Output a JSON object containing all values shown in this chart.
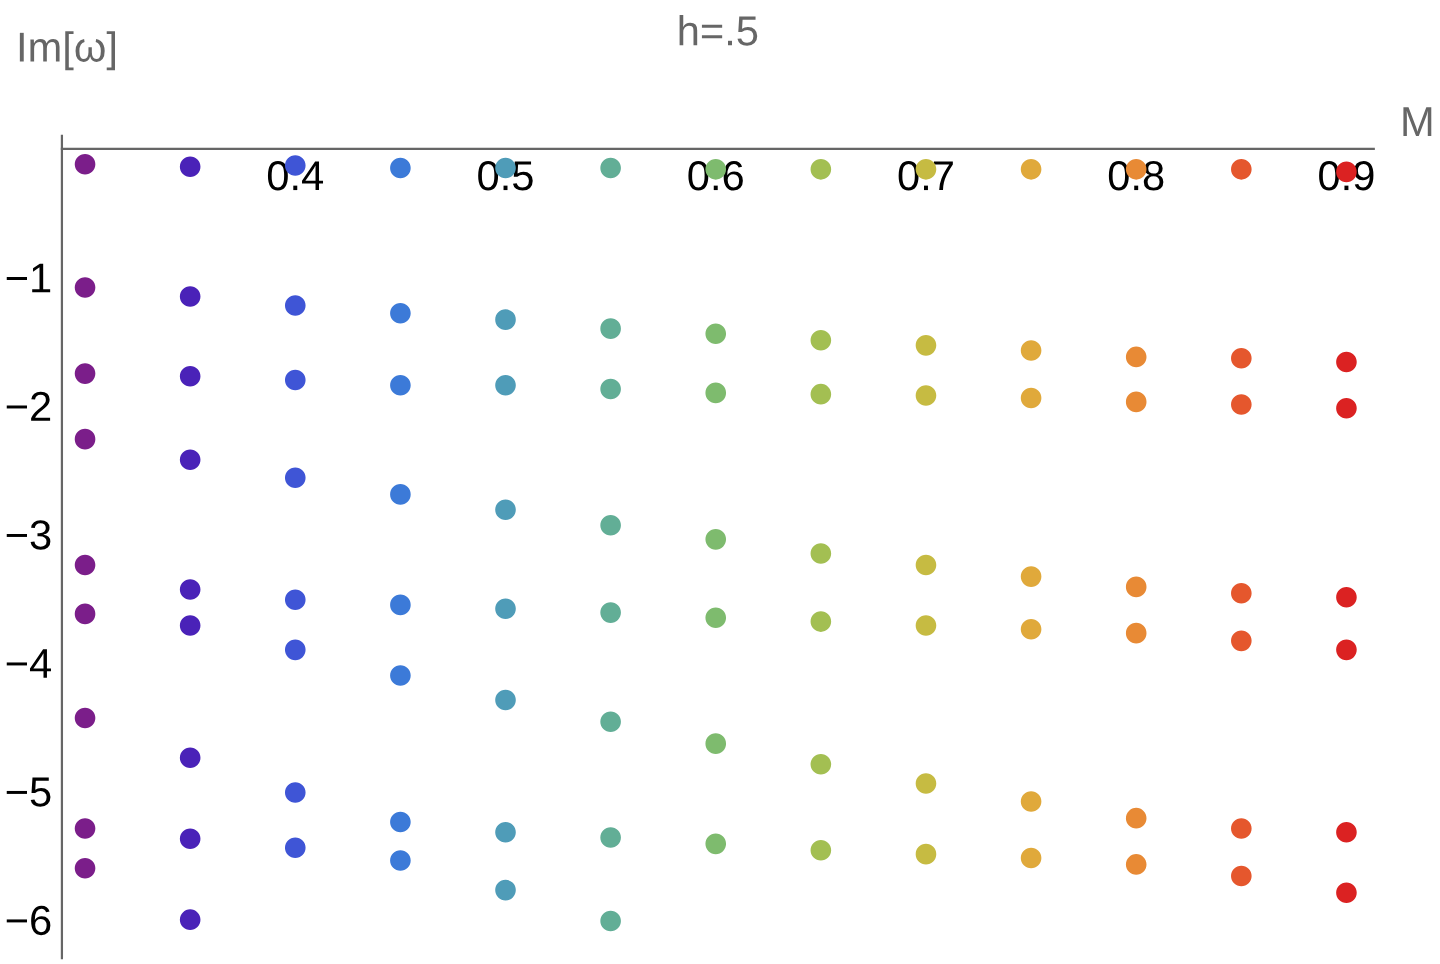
{
  "chart_data": {
    "type": "scatter",
    "title": "h=.5",
    "xlabel": "M",
    "ylabel": "Im[ω]",
    "marker": "circle",
    "grid": false,
    "legend": false,
    "xlim": [
      0.289,
      0.913
    ],
    "ylim": [
      -6.3,
      0.1
    ],
    "xticks": [
      0.4,
      0.5,
      0.6,
      0.7,
      0.8,
      0.9
    ],
    "yticks": [
      {
        "value": -1,
        "label": "−1"
      },
      {
        "value": -2,
        "label": "−2"
      },
      {
        "value": -3,
        "label": "−3"
      },
      {
        "value": -4,
        "label": "−4"
      },
      {
        "value": -5,
        "label": "−5"
      },
      {
        "value": -6,
        "label": "−6"
      }
    ],
    "series": [
      {
        "color": "#7b1e8a",
        "x": [
          0.3,
          0.3,
          0.3,
          0.3,
          0.3,
          0.3,
          0.3,
          0.3,
          0.3
        ],
        "values": [
          -0.12,
          -1.08,
          -1.75,
          -2.26,
          -3.24,
          -3.62,
          -4.43,
          -5.29,
          -5.6
        ]
      },
      {
        "color": "#4a22b8",
        "x": [
          0.35,
          0.35,
          0.35,
          0.35,
          0.35,
          0.35,
          0.35,
          0.35,
          0.35
        ],
        "values": [
          -0.14,
          -1.15,
          -1.77,
          -2.42,
          -3.43,
          -3.71,
          -4.74,
          -5.37,
          -6.0
        ]
      },
      {
        "color": "#3f55d6",
        "x": [
          0.4,
          0.4,
          0.4,
          0.4,
          0.4,
          0.4,
          0.4,
          0.4
        ],
        "values": [
          -0.13,
          -1.22,
          -1.8,
          -2.56,
          -3.51,
          -3.9,
          -5.01,
          -5.44
        ]
      },
      {
        "color": "#3c7ad8",
        "x": [
          0.45,
          0.45,
          0.45,
          0.45,
          0.45,
          0.45,
          0.45,
          0.45
        ],
        "values": [
          -0.15,
          -1.28,
          -1.84,
          -2.69,
          -3.55,
          -4.1,
          -5.24,
          -5.54
        ]
      },
      {
        "color": "#4f9cb8",
        "x": [
          0.5,
          0.5,
          0.5,
          0.5,
          0.5,
          0.5,
          0.5,
          0.5
        ],
        "values": [
          -0.15,
          -1.33,
          -1.84,
          -2.81,
          -3.58,
          -4.29,
          -5.32,
          -5.77
        ]
      },
      {
        "color": "#62ae96",
        "x": [
          0.55,
          0.55,
          0.55,
          0.55,
          0.55,
          0.55,
          0.55,
          0.55
        ],
        "values": [
          -0.15,
          -1.4,
          -1.87,
          -2.93,
          -3.61,
          -4.46,
          -5.36,
          -6.01
        ]
      },
      {
        "color": "#7ebb6e",
        "x": [
          0.6,
          0.6,
          0.6,
          0.6,
          0.6,
          0.6,
          0.6
        ],
        "values": [
          -0.16,
          -1.44,
          -1.9,
          -3.04,
          -3.65,
          -4.63,
          -5.41
        ]
      },
      {
        "color": "#a3bf52",
        "x": [
          0.65,
          0.65,
          0.65,
          0.65,
          0.65,
          0.65,
          0.65
        ],
        "values": [
          -0.16,
          -1.49,
          -1.91,
          -3.15,
          -3.68,
          -4.79,
          -5.46
        ]
      },
      {
        "color": "#c6bb42",
        "x": [
          0.7,
          0.7,
          0.7,
          0.7,
          0.7,
          0.7,
          0.7
        ],
        "values": [
          -0.16,
          -1.53,
          -1.92,
          -3.24,
          -3.71,
          -4.94,
          -5.49
        ]
      },
      {
        "color": "#e0a93b",
        "x": [
          0.75,
          0.75,
          0.75,
          0.75,
          0.75,
          0.75,
          0.75
        ],
        "values": [
          -0.16,
          -1.57,
          -1.94,
          -3.33,
          -3.74,
          -5.08,
          -5.52
        ]
      },
      {
        "color": "#e88a35",
        "x": [
          0.8,
          0.8,
          0.8,
          0.8,
          0.8,
          0.8,
          0.8
        ],
        "values": [
          -0.16,
          -1.62,
          -1.97,
          -3.41,
          -3.77,
          -5.21,
          -5.57
        ]
      },
      {
        "color": "#e5572d",
        "x": [
          0.85,
          0.85,
          0.85,
          0.85,
          0.85,
          0.85,
          0.85
        ],
        "values": [
          -0.16,
          -1.63,
          -1.99,
          -3.46,
          -3.83,
          -5.29,
          -5.66
        ]
      },
      {
        "color": "#db2222",
        "x": [
          0.9,
          0.9,
          0.9,
          0.9,
          0.9,
          0.9,
          0.9
        ],
        "values": [
          -0.18,
          -1.66,
          -2.02,
          -3.49,
          -3.9,
          -5.32,
          -5.79
        ]
      }
    ]
  }
}
